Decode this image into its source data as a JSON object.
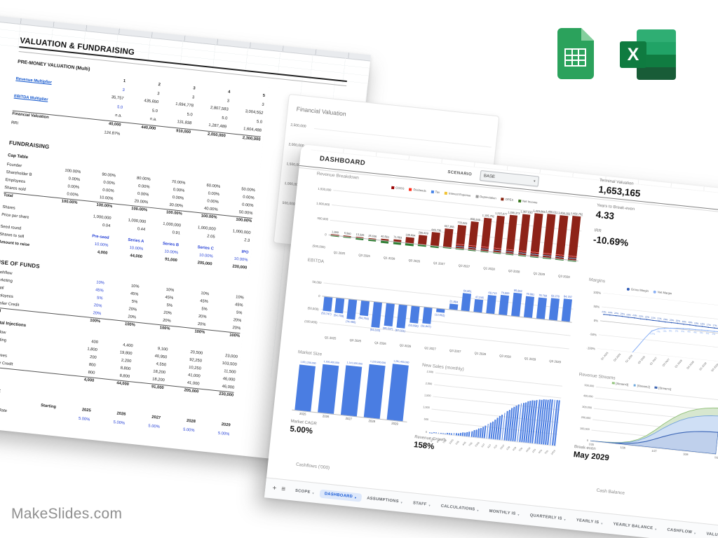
{
  "watermark": "MakeSlides.com",
  "icons": {
    "sheets_letter_x": "X",
    "plus": "+",
    "sheets_menu": "≡",
    "select_caret": "▾"
  },
  "valuation_sheet": {
    "title": "VALUATION & FUNDRAISING",
    "rows": [
      {
        "l": "PRE-MONEY VALUATION (Multi)",
        "s": "h2"
      },
      {
        "l": "",
        "c": [
          "",
          "1",
          "2",
          "3",
          "4",
          "5"
        ],
        "s": "colhead"
      },
      {
        "l": "Revenue Multiplier",
        "c": [
          "",
          "3",
          "3",
          "3",
          "3",
          "3"
        ],
        "s": "link blue2a mt2"
      },
      {
        "l": "",
        "c": [
          "",
          "35,757",
          "435,650",
          "1,694,778",
          "2,807,583",
          "3,004,552"
        ],
        "s": "res"
      },
      {
        "l": "EBITDA Multiplier",
        "c": [
          "",
          "5.0",
          "5.0",
          "5.0",
          "5.0",
          "5.0"
        ],
        "s": "link blue2a mt2"
      },
      {
        "l": "",
        "c": [
          "",
          "n.a.",
          "n.a.",
          "131,838",
          "1,287,489",
          "1,604,488"
        ],
        "s": "res"
      },
      {
        "l": "Financial Valuation",
        "c": [
          "",
          "40,000",
          "440,000",
          "910,000",
          "2,050,000",
          "2,300,000"
        ],
        "s": "total mt2"
      },
      {
        "l": "RRI",
        "c": [
          "",
          "124.87%",
          "",
          "",
          "",
          ""
        ],
        "s": "mt2"
      },
      {
        "l": "FUNDRAISING",
        "s": "h1"
      },
      {
        "l": "Cap Table",
        "s": "sub"
      },
      {
        "l": "Founder",
        "c": [
          "100.00%",
          "90.00%",
          "80.00%",
          "70.00%",
          "60.00%",
          "50.00%"
        ],
        "s": "mt2"
      },
      {
        "l": "Shareholder B",
        "c": [
          "0.00%",
          "0.00%",
          "0.00%",
          "0.00%",
          "0.00%",
          "0.00%"
        ],
        "s": ""
      },
      {
        "l": "Employees",
        "c": [
          "0.00%",
          "0.00%",
          "0.00%",
          "0.00%",
          "0.00%",
          "0.00%"
        ],
        "s": ""
      },
      {
        "l": "Shares sold",
        "c": [
          "0.00%",
          "10.00%",
          "20.00%",
          "30.00%",
          "40.00%",
          "50.00%"
        ],
        "s": ""
      },
      {
        "l": "Total",
        "c": [
          "100.00%",
          "100.00%",
          "100.00%",
          "100.00%",
          "100.00%",
          "100.00%"
        ],
        "s": "total"
      },
      {
        "l": "Shares",
        "c": [
          "",
          "1,000,000",
          "1,000,000",
          "1,000,000",
          "1,000,000",
          "1,000,000"
        ],
        "s": "mt6"
      },
      {
        "l": "Price per share",
        "c": [
          "",
          "0.04",
          "0.44",
          "0.91",
          "2.05",
          "2.3"
        ],
        "s": ""
      },
      {
        "l": "Seed round",
        "c": [
          "",
          "Pre-seed",
          "Series A",
          "Series B",
          "Series C",
          "IPO"
        ],
        "s": "blue bold mt6"
      },
      {
        "l": "Shares to sell",
        "c": [
          "",
          "10.00%",
          "10.00%",
          "10.00%",
          "10.00%",
          "10.00%"
        ],
        "s": "blue"
      },
      {
        "l": "Amount to raise",
        "c": [
          "",
          "4,000",
          "44,000",
          "91,000",
          "205,000",
          "230,000"
        ],
        "s": "boldrow"
      },
      {
        "l": "USE OF FUNDS",
        "s": "h1"
      },
      {
        "l": "Cashflow",
        "c": [
          "",
          "10%",
          "10%",
          "10%",
          "10%",
          "10%"
        ],
        "s": "blue2a mt2"
      },
      {
        "l": "Marketing",
        "c": [
          "",
          "45%",
          "45%",
          "45%",
          "45%",
          "45%"
        ],
        "s": "blue2a"
      },
      {
        "l": "Legal",
        "c": [
          "",
          "5%",
          "5%",
          "5%",
          "5%",
          "5%"
        ],
        "s": "blue2a"
      },
      {
        "l": "Employees",
        "c": [
          "",
          "20%",
          "20%",
          "20%",
          "20%",
          "20%"
        ],
        "s": "blue2a"
      },
      {
        "l": "Supplier Credit",
        "c": [
          "",
          "20%",
          "20%",
          "20%",
          "20%",
          "20%"
        ],
        "s": "blue2a"
      },
      {
        "l": "Total",
        "c": [
          "",
          "100%",
          "100%",
          "100%",
          "100%",
          "100%"
        ],
        "s": "total"
      },
      {
        "l": "Capital Injections",
        "s": "sub"
      },
      {
        "l": "Cashflow",
        "c": [
          "",
          "400",
          "4,400",
          "9,100",
          "20,500",
          "23,000"
        ],
        "s": "mt2"
      },
      {
        "l": "Marketing",
        "c": [
          "",
          "1,800",
          "19,800",
          "40,950",
          "92,250",
          "103,500"
        ],
        "s": ""
      },
      {
        "l": "Legal",
        "c": [
          "",
          "200",
          "2,200",
          "4,550",
          "10,250",
          "11,500"
        ],
        "s": ""
      },
      {
        "l": "Employees",
        "c": [
          "",
          "800",
          "8,800",
          "18,200",
          "41,000",
          "46,000"
        ],
        "s": ""
      },
      {
        "l": "Supplier Credit",
        "c": [
          "",
          "800",
          "8,800",
          "18,200",
          "41,000",
          "46,000"
        ],
        "s": ""
      },
      {
        "l": "Total",
        "c": [
          "",
          "4,000",
          "44,000",
          "91,000",
          "205,000",
          "230,000"
        ],
        "s": "total"
      },
      {
        "l": "WACC",
        "s": "h1"
      },
      {
        "l": "",
        "c": [
          "Starting",
          "2025",
          "2026",
          "2027",
          "2028",
          "2029"
        ],
        "s": "yearrow mt2"
      },
      {
        "l": "Risk-free Rate",
        "c": [
          "",
          "5.00%",
          "5.00%",
          "5.00%",
          "5.00%",
          "5.00%"
        ],
        "s": "blue mt2"
      }
    ]
  },
  "finval": {
    "title": "Financial Valuation",
    "y_ticks": [
      "2,500,000",
      "2,000,000",
      "1,500,000",
      "1,000,000",
      "500,000"
    ]
  },
  "dashboard": {
    "sheet_title": "DASHBOARD",
    "scenario_label": "SCENARIO",
    "scenario_value": "BASE",
    "kpis": [
      {
        "label": "Terminal Valuation",
        "value": "1,653,165"
      },
      {
        "label": "Years to Break-even",
        "value": "4.33"
      },
      {
        "label": "IRR",
        "value": "-10.69%"
      }
    ],
    "revenue_breakdown": {
      "title": "Revenue Breakdown",
      "legend": [
        {
          "label": "COGS",
          "color": "#980000"
        },
        {
          "label": "Dividends",
          "color": "#ff2b18"
        },
        {
          "label": "Tax",
          "color": "#4a86e8"
        },
        {
          "label": "Interest Expense",
          "color": "#f1c232"
        },
        {
          "label": "Depreciation",
          "color": "#999999"
        },
        {
          "label": "OPEX",
          "color": "#85200c"
        },
        {
          "label": "Net Income",
          "color": "#38761d"
        }
      ],
      "y_ticks": [
        "1,500,000",
        "1,000,000",
        "500,000",
        "0",
        "(500,000)"
      ],
      "x_labels": [
        "Q1 2025",
        "Q3 2025",
        "Q1 2026",
        "Q3 2026",
        "Q1 2027",
        "Q3 2027",
        "Q1 2028",
        "Q3 2028",
        "Q1 2029",
        "Q3 2029"
      ],
      "bars": [
        {
          "v": 1389,
          "label": "1,389",
          "neg": 30000
        },
        {
          "v": 5560,
          "label": "5,560",
          "neg": 42000
        },
        {
          "v": 13325,
          "label": "13,325",
          "neg": 55000
        },
        {
          "v": 25636,
          "label": "25,636",
          "neg": 52000
        },
        {
          "v": 40561,
          "label": "40,561",
          "neg": 90000
        },
        {
          "v": 71583,
          "label": "71,583",
          "neg": 82000
        },
        {
          "v": 185894,
          "label": "185,894",
          "neg": 85000
        },
        {
          "v": 296609,
          "label": "296,609",
          "neg": 63000
        },
        {
          "v": 445730,
          "label": "445,730",
          "neg": 62000
        },
        {
          "v": 607356,
          "label": "607,356",
          "neg": 14000
        },
        {
          "v": 778029,
          "label": "778,029",
          "neg": 15000
        },
        {
          "v": 938249,
          "label": "938,249",
          "neg": 15000
        },
        {
          "v": 1105752,
          "label": "1,105,752",
          "neg": 15000
        },
        {
          "v": 1215077,
          "label": "1,215,077",
          "neg": 15000
        },
        {
          "v": 1288373,
          "label": "1,288,373",
          "neg": 15000
        },
        {
          "v": 1357630,
          "label": "1,357,630",
          "neg": 15000
        },
        {
          "v": 1423066,
          "label": "1,423,066",
          "neg": 15000
        },
        {
          "v": 1450011,
          "label": "1,450,011",
          "neg": 15000
        },
        {
          "v": 1466102,
          "label": "1,466,102",
          "neg": 15000
        },
        {
          "v": 1482752,
          "label": "1,482,752",
          "neg": 15000
        }
      ]
    },
    "ebitda": {
      "title": "EBITDA",
      "y_ticks": [
        "50,000",
        "0",
        "(50,000)",
        "(100,000)"
      ],
      "x_labels": [
        "Q1 2025",
        "Q3 2025",
        "Q1 2026",
        "Q3 2026",
        "Q1 2027",
        "Q3 2027",
        "Q1 2028",
        "Q3 2028",
        "Q1 2029",
        "Q3 2029"
      ],
      "bars": [
        {
          "v": -53747,
          "label": "(53,747)"
        },
        {
          "v": -54709,
          "label": "(54,709)"
        },
        {
          "v": -74486,
          "label": "(74,486)"
        },
        {
          "v": -54754,
          "label": "(54,754)"
        },
        {
          "v": -94633,
          "label": "(94,633)"
        },
        {
          "v": -85037,
          "label": "(85,037)"
        },
        {
          "v": -87021,
          "label": "(87,021)"
        },
        {
          "v": -63096,
          "label": "(63,096)"
        },
        {
          "v": -61647,
          "label": "(61,647)"
        },
        {
          "v": -13562,
          "label": "(13,562)"
        },
        {
          "v": 21894,
          "label": "21,894"
        },
        {
          "v": 64851,
          "label": "64,851"
        },
        {
          "v": 47246,
          "label": "47,246"
        },
        {
          "v": 69713,
          "label": "69,713"
        },
        {
          "v": 74600,
          "label": "74,600"
        },
        {
          "v": 85892,
          "label": "85,892"
        },
        {
          "v": 79881,
          "label": "79,881"
        },
        {
          "v": 78769,
          "label": "78,769"
        },
        {
          "v": 82270,
          "label": "82,270"
        },
        {
          "v": 84787,
          "label": "84,787"
        }
      ]
    },
    "margins": {
      "title": "Margins",
      "legend": [
        {
          "label": "Gross Margin",
          "color": "#2f5bb7"
        },
        {
          "label": "Net Margin",
          "color": "#8ab0f5"
        }
      ],
      "y_ticks": [
        "100%",
        "50%",
        "0%",
        "-50%",
        "-100%"
      ],
      "x_labels": [
        "Q1 2025",
        "Q3 2025",
        "Q1 2026",
        "Q3 2026",
        "Q1 2027",
        "Q3 2027",
        "Q1 2028",
        "Q3 2028",
        "Q1 2029",
        "Q3 2029"
      ],
      "gross": [
        24,
        24,
        24,
        24,
        23,
        23,
        22,
        22,
        21,
        21,
        20,
        20,
        20,
        19,
        19,
        18,
        18,
        17,
        17,
        17
      ],
      "net": [
        -320,
        -262,
        -213,
        -172,
        -138,
        -108,
        -77,
        -45,
        -17,
        -7,
        -3,
        0,
        2,
        3,
        4,
        4,
        5,
        5,
        5,
        5
      ]
    },
    "market_size": {
      "title": "Market Size",
      "years": [
        "2025",
        "2026",
        "2027",
        "2028",
        "2029"
      ],
      "values": [
        1051200000,
        1106400000,
        1141500000,
        1220900000,
        1281400000
      ],
      "labels": [
        "1,051,200,000",
        "1,106,400,000",
        "1,141,500,000",
        "1,220,900,000",
        "1,281,400,000"
      ],
      "cagr_label": "Market CAGR",
      "cagr_value": "5.00%"
    },
    "new_sales": {
      "title": "New Sales (monthly)",
      "y_ticks": [
        "2,500",
        "2,000",
        "1,500",
        "1,000",
        "500",
        "0"
      ],
      "x_labels": [
        "1/25",
        "4/25",
        "7/25",
        "10/25",
        "1/26",
        "4/26",
        "7/26",
        "10/26",
        "1/27",
        "4/27",
        "7/27",
        "10/27",
        "1/28",
        "4/28",
        "7/28",
        "10/28",
        "1/29",
        "4/29",
        "7/29",
        "10/29"
      ],
      "values": [
        12,
        14,
        17,
        20,
        24,
        28,
        32,
        38,
        46,
        53,
        62,
        73,
        85,
        100,
        116,
        136,
        157,
        182,
        211,
        244,
        280,
        320,
        366,
        416,
        472,
        532,
        596,
        666,
        739,
        816,
        895,
        976,
        1056,
        1135,
        1212,
        1285,
        1355,
        1420,
        1480,
        1535,
        1585,
        1630,
        1669,
        1704,
        1735,
        1762,
        1784,
        1805,
        1822,
        1836,
        1849,
        1860,
        1868,
        1876,
        1882,
        1888,
        1892,
        1896
      ],
      "growth_label": "Revenue Growth",
      "growth_value": "158%"
    },
    "revenue_streams": {
      "title": "Revenue Streams",
      "legend": [
        {
          "label": "[Stream3]",
          "color": "#93c47d"
        },
        {
          "label": "[Stream2]",
          "color": "#6fa8dc"
        },
        {
          "label": "[Stream1]",
          "color": "#3c64b1"
        }
      ],
      "y_ticks": [
        "500,000",
        "400,000",
        "300,000",
        "200,000",
        "100,000",
        "0"
      ],
      "x_labels": [
        "1/25",
        "1/26",
        "1/27",
        "1/28",
        "1/29"
      ],
      "s1": [
        0,
        500,
        1500,
        3000,
        8000,
        15000,
        28000,
        48000,
        75000,
        105000,
        132000,
        155000,
        172000,
        184000,
        192000,
        197000,
        200000
      ],
      "s2top": [
        0,
        1000,
        2800,
        6000,
        14000,
        26000,
        49000,
        84000,
        131000,
        184000,
        231000,
        271000,
        301000,
        322000,
        336000,
        345000,
        350000
      ],
      "s3top": [
        0,
        1500,
        4000,
        9000,
        17000,
        32000,
        60000,
        102000,
        159000,
        223000,
        280000,
        328000,
        364000,
        389000,
        406000,
        417000,
        423000
      ],
      "breakeven_label": "Break-even",
      "breakeven_value": "May 2029"
    },
    "cashflows_label": "Cashflows ('000)",
    "cash_balance_label": "Cash Balance",
    "tabs": [
      {
        "label": "SCOPE",
        "cls": ""
      },
      {
        "label": "DASHBOARD",
        "cls": "active"
      },
      {
        "label": "ASSUMPTIONS",
        "cls": ""
      },
      {
        "label": "STAFF",
        "cls": ""
      },
      {
        "label": "CALCULATIONS",
        "cls": ""
      },
      {
        "label": "MONTHLY IS",
        "cls": ""
      },
      {
        "label": "QUARTERLY IS",
        "cls": ""
      },
      {
        "label": "YEARLY IS",
        "cls": ""
      },
      {
        "label": "YEARLY BALANCE",
        "cls": ""
      },
      {
        "label": "CASHFLOW",
        "cls": ""
      },
      {
        "label": "VALUATION",
        "cls": ""
      }
    ]
  }
}
